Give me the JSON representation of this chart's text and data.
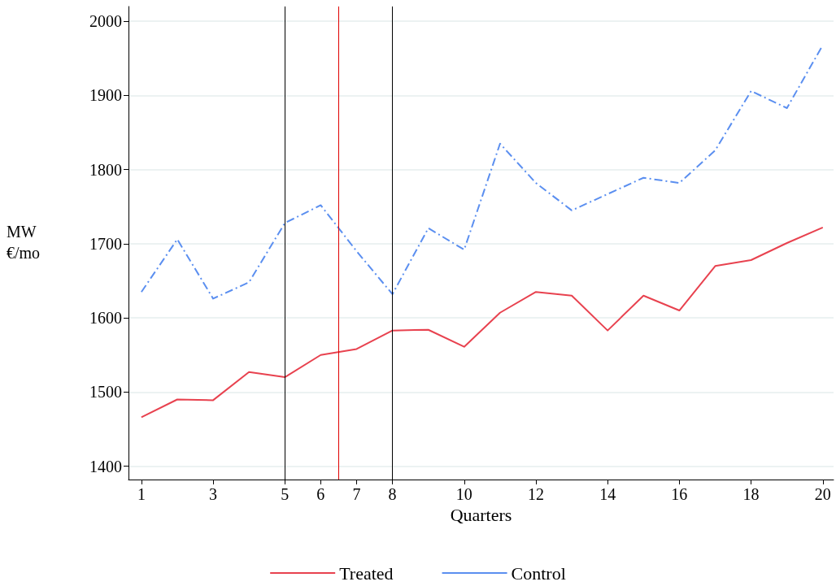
{
  "chart_data": {
    "type": "line",
    "xlabel": "Quarters",
    "ylabel": "MW\n€/mo",
    "x": [
      1,
      2,
      3,
      4,
      5,
      6,
      7,
      8,
      9,
      10,
      11,
      12,
      13,
      14,
      15,
      16,
      17,
      18,
      19,
      20
    ],
    "series": [
      {
        "name": "Treated",
        "color": "#e8424f",
        "line_style": "solid",
        "values": [
          1466,
          1490,
          1489,
          1527,
          1520,
          1550,
          1558,
          1583,
          1584,
          1561,
          1607,
          1635,
          1630,
          1583,
          1630,
          1610,
          1670,
          1678,
          1701,
          1722
        ]
      },
      {
        "name": "Control",
        "color": "#5b8ff0",
        "line_style": "dashdot",
        "values": [
          1635,
          1706,
          1626,
          1648,
          1728,
          1752,
          1690,
          1632,
          1721,
          1692,
          1835,
          1782,
          1745,
          1767,
          1789,
          1782,
          1826,
          1906,
          1883,
          1968
        ]
      }
    ],
    "xlim": [
      0.64,
      20.3
    ],
    "xticks": [
      1,
      3,
      5,
      6,
      7,
      8,
      10,
      12,
      14,
      16,
      18,
      20
    ],
    "ylim": [
      1382,
      2020
    ],
    "yticks": [
      1400,
      1500,
      1600,
      1700,
      1800,
      1900,
      2000
    ],
    "ref_lines": [
      {
        "axis": "x",
        "value": 5,
        "color": "#000000"
      },
      {
        "axis": "x",
        "value": 6.5,
        "color": "#e00000"
      },
      {
        "axis": "x",
        "value": 8,
        "color": "#000000"
      }
    ],
    "grid": "y",
    "legend": "bottom",
    "marker": "none"
  }
}
